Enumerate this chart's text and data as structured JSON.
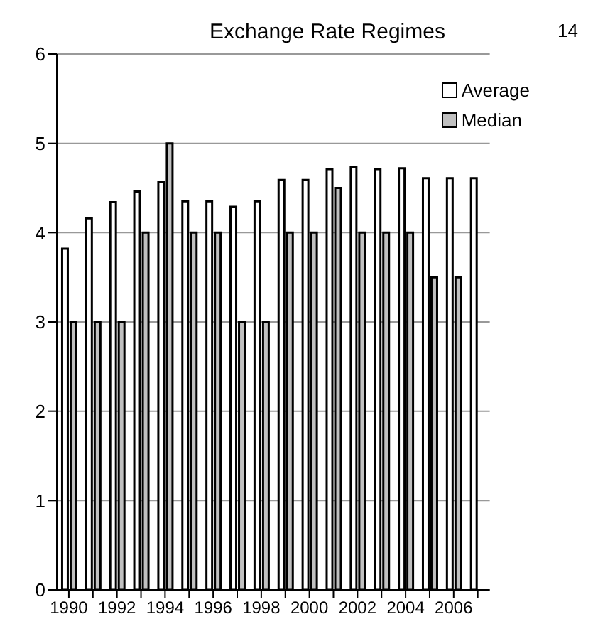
{
  "chart_data": {
    "type": "bar",
    "title": "Exchange Rate Regimes",
    "annotations": [
      "14"
    ],
    "categories": [
      "1990",
      null,
      "1992",
      null,
      "1994",
      null,
      "1996",
      null,
      "1998",
      null,
      "2000",
      null,
      "2002",
      null,
      "2004",
      null,
      "2006",
      null
    ],
    "series": [
      {
        "name": "Average",
        "color": "#ffffff",
        "values": [
          3.82,
          4.16,
          4.34,
          4.46,
          4.57,
          4.35,
          4.35,
          4.29,
          4.35,
          4.59,
          4.59,
          4.71,
          4.73,
          4.71,
          4.72,
          4.61,
          4.61,
          4.61
        ]
      },
      {
        "name": "Median",
        "color": "#c0c0c0",
        "values": [
          3,
          3,
          3,
          4,
          5,
          4,
          4,
          3,
          3,
          4,
          4,
          4.5,
          4,
          4,
          4,
          3.5,
          3.5,
          null
        ]
      }
    ],
    "ylim": [
      0,
      6
    ],
    "yticks": [
      0,
      1,
      2,
      3,
      4,
      5,
      6
    ],
    "grid": "y",
    "legend": "top right"
  }
}
